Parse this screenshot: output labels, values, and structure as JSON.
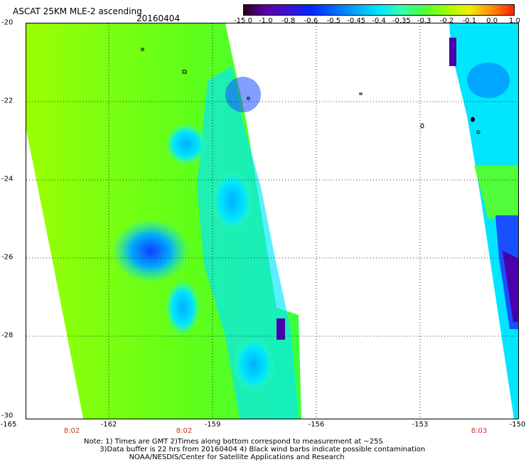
{
  "header": {
    "title": "ASCAT 25KM MLE-2 ascending",
    "date": "20160404"
  },
  "colorbar": {
    "labels": [
      "-15.0",
      "-1.0",
      "-0.8",
      "-0.6",
      "-0.5",
      "-0.45",
      "-0.4",
      "-0.35",
      "-0.3",
      "-0.2",
      "-0.1",
      "0.0",
      "1.0"
    ],
    "colors": [
      "#2a001f",
      "#5b00a8",
      "#3a14d8",
      "#0028ff",
      "#0066ff",
      "#00aaff",
      "#00e6ff",
      "#34ffb0",
      "#4cff3a",
      "#9cff00",
      "#f0f000",
      "#ff9000",
      "#ff2000"
    ]
  },
  "map": {
    "y_ticks": [
      "-20",
      "-22",
      "-24",
      "-26",
      "-28",
      "-30"
    ],
    "x_ticks": [
      "-165",
      "-162",
      "-159",
      "-156",
      "-153",
      "-150"
    ],
    "time_labels": [
      "8:02",
      "8:02",
      "8:03"
    ],
    "colors": {
      "swath_green": "#5fff19",
      "swath_green_light": "#9cff00",
      "cyan": "#00e6ff",
      "blue": "#1850ff",
      "deep_blue": "#2200dd",
      "purple": "#4a00aa"
    }
  },
  "notes": {
    "line1": "Note: 1) Times are GMT 2)Times along bottom correspond to measurement at ~25S",
    "line2": "       3)Data buffer is 22 hrs from 20160404 4) Black wind barbs indicate possible contamination",
    "line3": "                    NOAA/NESDIS/Center for Satellite Applications and Research"
  }
}
